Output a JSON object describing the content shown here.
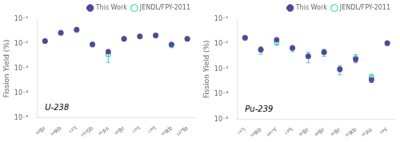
{
  "chart_data": [
    {
      "type": "scatter",
      "categories": [
        "⁹⁰Br",
        "⁹⁴Rb",
        "¹³⁷I",
        "¹³⁵Sb",
        "⁸⁵As",
        "⁸⁹Br",
        "¹³⁹I",
        "¹³⁸I",
        "⁹⁶Rb",
        "¹³⁷Te"
      ],
      "series": [
        {
          "name": "This Work",
          "color": "#5c4299",
          "marker": "circle",
          "values": [
            0.013,
            0.028,
            0.038,
            0.0095,
            0.0048,
            0.016,
            0.02,
            0.022,
            0.0095,
            0.016
          ],
          "errors": [
            0.002,
            0.003,
            0.004,
            0.0015,
            0.0008,
            0.002,
            0.003,
            0.003,
            0.0015,
            0.002
          ]
        },
        {
          "name": "JENDL/FPY-2011",
          "color": "#3dcfb8",
          "marker": "open_circle",
          "values": [
            0.013,
            0.028,
            0.036,
            0.0095,
            0.0038,
            0.016,
            0.02,
            0.022,
            0.009,
            0.016
          ],
          "errors_minus": [
            0.002,
            0.004,
            0.004,
            0.002,
            0.002,
            0.003,
            0.003,
            0.004,
            0.002,
            0.003
          ],
          "errors_plus": [
            0.002,
            0.004,
            0.004,
            0.002,
            0.002,
            0.003,
            0.003,
            0.004,
            0.002,
            0.003
          ]
        }
      ],
      "annotation": "U-238",
      "ylabel": "Fission Yield (%)",
      "log": "y",
      "ylim": [
        1e-05,
        0.1
      ],
      "yticks": [
        {
          "value": 1e-05,
          "label": "10⁻⁵"
        },
        {
          "value": 0.0001,
          "label": "10⁻⁴"
        },
        {
          "value": 0.001,
          "label": "10⁻³"
        },
        {
          "value": 0.01,
          "label": "10⁻²"
        },
        {
          "value": 0.1,
          "label": "10⁻¹"
        }
      ],
      "legend": "upper right",
      "grid": false
    },
    {
      "type": "scatter",
      "categories": [
        "¹³⁷I",
        "⁹⁴Rb",
        "⁹⁸ᵐY",
        "¹³⁸I",
        "⁸⁹Br",
        "⁸⁸Br",
        "⁹⁰Br",
        "⁹⁵Rb",
        "⁸⁵As",
        "⁹⁹Y"
      ],
      "series": [
        {
          "name": "This Work",
          "color": "#5c4299",
          "marker": "circle",
          "values": [
            0.018,
            0.006,
            0.015,
            0.007,
            0.0033,
            0.0048,
            0.001,
            0.0025,
            0.00038,
            0.011
          ],
          "errors": [
            0.002,
            0.001,
            0.002,
            0.001,
            0.0006,
            0.0008,
            0.0002,
            0.0005,
            8e-05,
            0.002
          ]
        },
        {
          "name": "JENDL/FPY-2011",
          "color": "#3dcfb8",
          "marker": "open_circle",
          "values": [
            0.018,
            0.006,
            0.012,
            0.007,
            0.0033,
            0.0048,
            0.001,
            0.0028,
            0.00048,
            0.011
          ],
          "errors_minus": [
            0.003,
            0.002,
            0.003,
            0.002,
            0.0015,
            0.0015,
            0.0004,
            0.001,
            0.00015,
            0.002
          ],
          "errors_plus": [
            0.003,
            0.002,
            0.003,
            0.002,
            0.0015,
            0.0015,
            0.0004,
            0.001,
            0.00015,
            0.002
          ]
        }
      ],
      "annotation": "Pu-239",
      "ylabel": "Fission Yield (%)",
      "log": "y",
      "ylim": [
        1e-05,
        0.1
      ],
      "yticks": [
        {
          "value": 1e-05,
          "label": "10⁻⁵"
        },
        {
          "value": 0.0001,
          "label": "10⁻⁴"
        },
        {
          "value": 0.001,
          "label": "10⁻³"
        },
        {
          "value": 0.01,
          "label": "10⁻²"
        },
        {
          "value": 0.1,
          "label": "10⁻¹"
        }
      ],
      "legend": "upper right",
      "grid": false
    }
  ]
}
